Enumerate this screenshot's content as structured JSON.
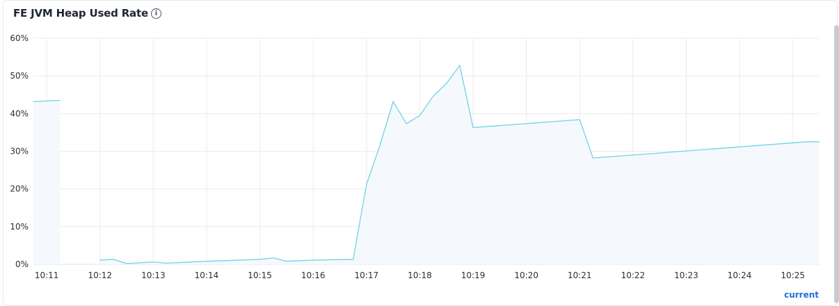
{
  "panel": {
    "title": "FE JVM Heap Used Rate",
    "info_icon": "info-circle-icon",
    "current_link": "current"
  },
  "chart_data": {
    "type": "area",
    "title": "FE JVM Heap Used Rate",
    "xlabel": "",
    "ylabel": "",
    "ylim": [
      0,
      60
    ],
    "xlim": [
      "10:10:45",
      "10:25:30"
    ],
    "y_ticks": [
      "0%",
      "10%",
      "20%",
      "30%",
      "40%",
      "50%",
      "60%"
    ],
    "x_ticks": [
      "10:11",
      "10:12",
      "10:13",
      "10:14",
      "10:15",
      "10:16",
      "10:17",
      "10:18",
      "10:19",
      "10:20",
      "10:21",
      "10:22",
      "10:23",
      "10:24",
      "10:25"
    ],
    "grid": true,
    "line_color": "#6fd3e6",
    "fill_color": "#f4f8fd",
    "series": [
      {
        "x": [
          "10:10:45",
          "10:11:15",
          null,
          "10:12:00",
          "10:12:15",
          "10:12:30",
          "10:13:00",
          "10:13:15",
          "10:14:00",
          "10:15:00",
          "10:15:15",
          "10:15:30",
          "10:16:00",
          "10:16:45",
          "10:17:00",
          "10:17:15",
          "10:17:30",
          "10:17:45",
          "10:18:00",
          "10:18:15",
          "10:18:30",
          "10:18:45",
          "10:19:00",
          "10:21:00",
          "10:21:15",
          "10:25:15",
          "10:25:30"
        ],
        "y": [
          43.2,
          43.5,
          null,
          1.1,
          1.3,
          0.2,
          0.6,
          0.3,
          0.8,
          1.3,
          1.7,
          0.8,
          1.1,
          1.3,
          21.2,
          31.5,
          43.2,
          37.3,
          39.5,
          44.6,
          48.0,
          52.8,
          36.3,
          38.4,
          28.2,
          32.5,
          32.5
        ]
      }
    ]
  }
}
